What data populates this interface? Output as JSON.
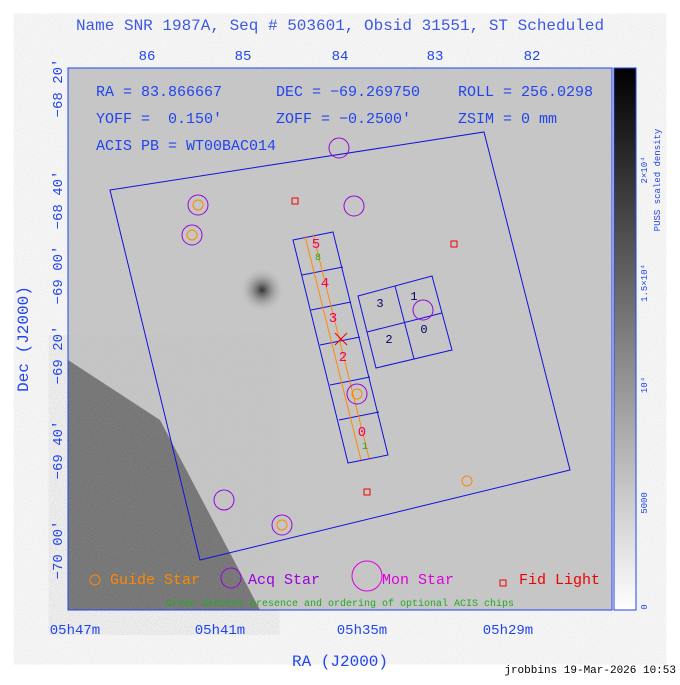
{
  "title": "Name SNR 1987A, Seq # 503601, Obsid 31551, ST Scheduled",
  "top_axis_labels": [
    "86",
    "85",
    "84",
    "83",
    "82"
  ],
  "left_axis_labels": [
    "−68 20′",
    "−68 40′",
    "−69 00′",
    "−69 20′",
    "−69 40′",
    "−70 00′"
  ],
  "bottom_axis_labels": [
    "05h47m",
    "05h41m",
    "05h35m",
    "05h29m"
  ],
  "x_label": "RA (J2000)",
  "y_label": "Dec (J2000)",
  "info": [
    "RA = 83.866667",
    "DEC = −69.269750",
    "ROLL = 256.0298",
    "YOFF =  0.150′",
    "ZOFF = −0.2500′",
    "ZSIM = 0 mm",
    "ACIS PB = WT00BAC014"
  ],
  "chip_labels": [
    "5",
    "8",
    "4",
    "3",
    "2",
    "0",
    "1",
    "3",
    "1",
    "2",
    "0"
  ],
  "legend": [
    "Guide Star",
    "Acq Star",
    "Mon Star",
    "Fid Light"
  ],
  "note": "Green denotes presence and ordering of optional ACIS chips",
  "colorbar_label": "PUSS scaled density",
  "colorbar_ticks": [
    "0",
    "5000",
    "10⁴",
    "1.5×10⁴",
    "2×10⁴"
  ],
  "footer": "jrobbins 19-Mar-2026 10:53"
}
